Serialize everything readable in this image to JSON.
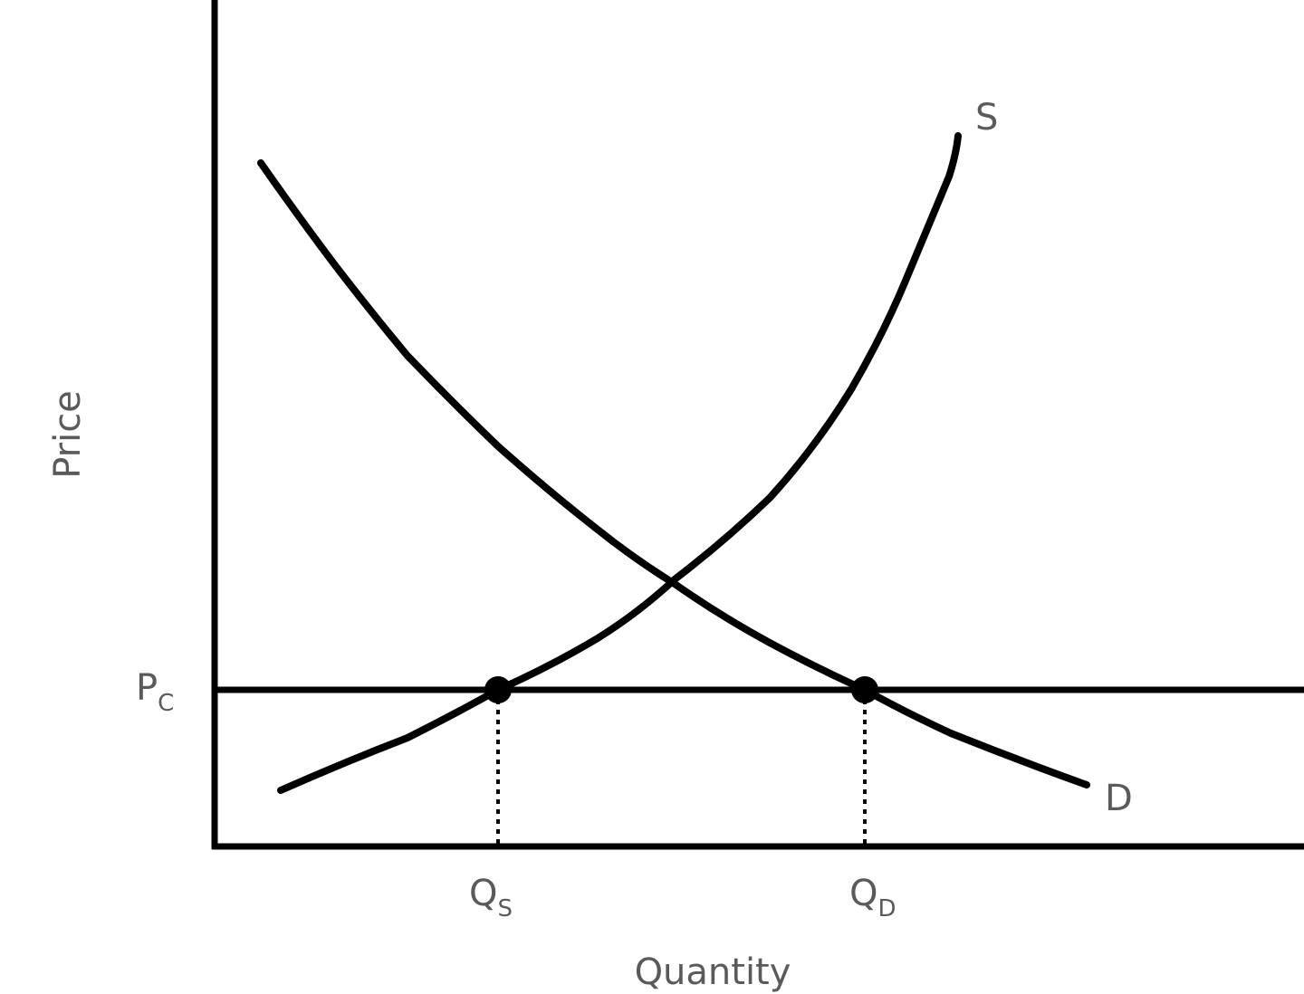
{
  "axes": {
    "y_label": "Price",
    "x_label": "Quantity"
  },
  "curves": {
    "supply": "S",
    "demand": "D"
  },
  "price_line": {
    "main": "P",
    "sub": "C"
  },
  "quantities": [
    {
      "main": "Q",
      "sub": "S"
    },
    {
      "main": "Q",
      "sub": "D"
    }
  ]
}
